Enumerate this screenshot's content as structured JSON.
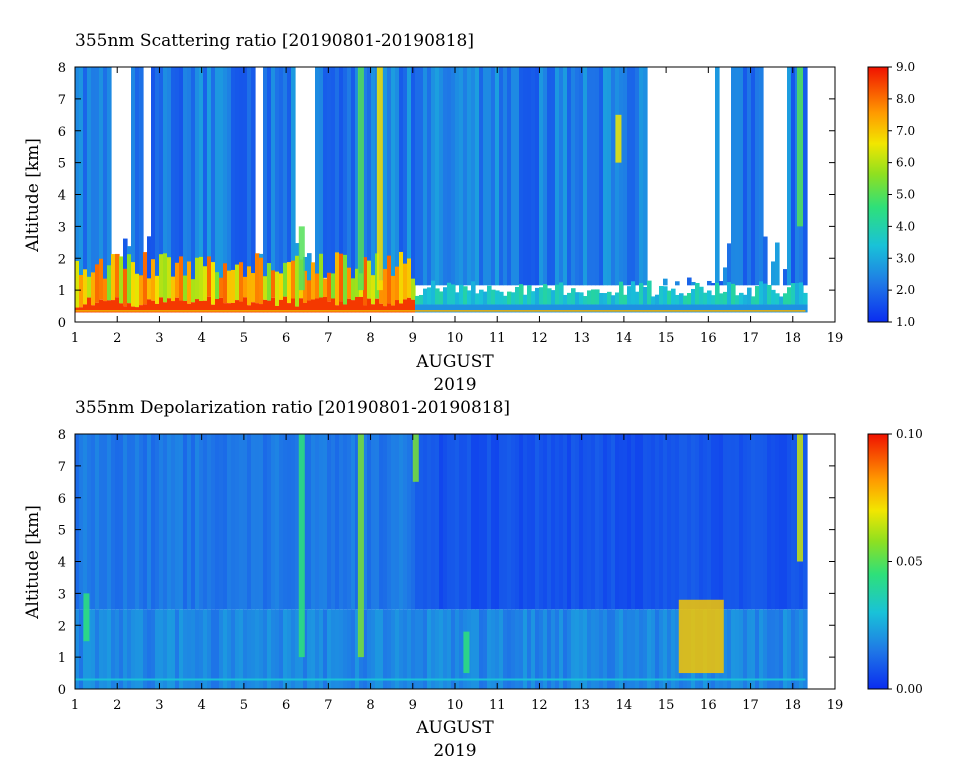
{
  "chart_data": [
    {
      "type": "heatmap",
      "title": "355nm Scattering ratio [20190801-20190818]",
      "xlabel": "AUGUST",
      "xlabel2": "2019",
      "ylabel": "Altitude [km]",
      "xlim": [
        1,
        19
      ],
      "ylim": [
        0,
        8
      ],
      "x_ticks": [
        "1",
        "2",
        "3",
        "4",
        "5",
        "6",
        "7",
        "8",
        "9",
        "10",
        "11",
        "12",
        "13",
        "14",
        "15",
        "16",
        "17",
        "18",
        "19"
      ],
      "y_ticks": [
        "0",
        "1",
        "2",
        "3",
        "4",
        "5",
        "6",
        "7",
        "8"
      ],
      "colorbar": {
        "range": [
          1.0,
          9.0
        ],
        "ticks": [
          "1.0",
          "2.0",
          "3.0",
          "4.0",
          "5.0",
          "6.0",
          "7.0",
          "8.0",
          "9.0"
        ]
      },
      "data_end_day": 18.3
    },
    {
      "type": "heatmap",
      "title": "355nm Depolarization ratio [20190801-20190818]",
      "xlabel": "AUGUST",
      "xlabel2": "2019",
      "ylabel": "Altitude [km]",
      "xlim": [
        1,
        19
      ],
      "ylim": [
        0,
        8
      ],
      "x_ticks": [
        "1",
        "2",
        "3",
        "4",
        "5",
        "6",
        "7",
        "8",
        "9",
        "10",
        "11",
        "12",
        "13",
        "14",
        "15",
        "16",
        "17",
        "18",
        "19"
      ],
      "y_ticks": [
        "0",
        "1",
        "2",
        "3",
        "4",
        "5",
        "6",
        "7",
        "8"
      ],
      "colorbar": {
        "range": [
          0.0,
          0.1
        ],
        "ticks": [
          "0.00",
          "0.05",
          "0.10"
        ]
      },
      "data_end_day": 18.3
    }
  ]
}
